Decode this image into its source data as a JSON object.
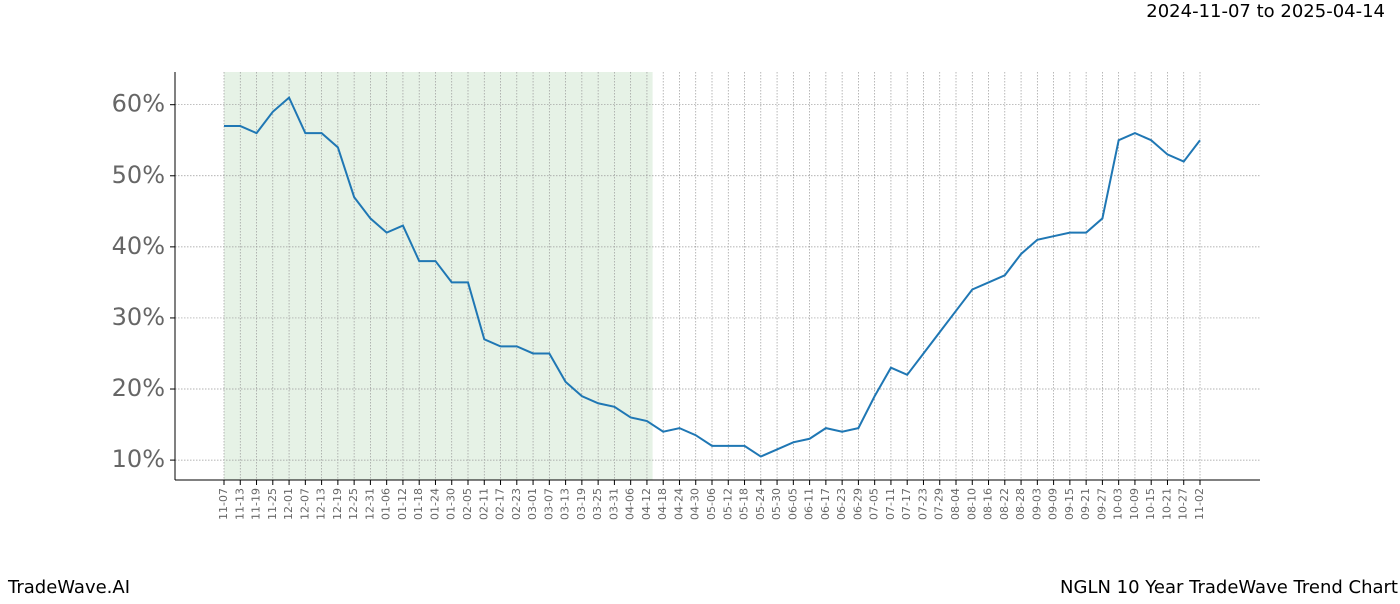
{
  "chart_data": {
    "type": "line",
    "title": "2024-11-07 to 2025-04-14",
    "brand": "TradeWave.AI",
    "subtitle": "NGLN 10 Year TradeWave Trend Chart",
    "categories": [
      "11-07",
      "11-13",
      "11-19",
      "11-25",
      "12-01",
      "12-07",
      "12-13",
      "12-19",
      "12-25",
      "12-31",
      "01-06",
      "01-12",
      "01-18",
      "01-24",
      "01-30",
      "02-05",
      "02-11",
      "02-17",
      "02-23",
      "03-01",
      "03-07",
      "03-13",
      "03-19",
      "03-25",
      "03-31",
      "04-06",
      "04-12",
      "04-18",
      "04-24",
      "04-30",
      "05-06",
      "05-12",
      "05-18",
      "05-24",
      "05-30",
      "06-05",
      "06-11",
      "06-17",
      "06-23",
      "06-29",
      "07-05",
      "07-11",
      "07-17",
      "07-23",
      "07-29",
      "08-04",
      "08-10",
      "08-16",
      "08-22",
      "08-28",
      "09-03",
      "09-09",
      "09-15",
      "09-21",
      "09-27",
      "10-03",
      "10-09",
      "10-15",
      "10-21",
      "10-27",
      "11-02"
    ],
    "series": [
      {
        "color": "#1f77b4",
        "values": [
          57,
          57,
          56,
          59,
          61,
          56,
          56,
          54,
          47,
          44,
          42,
          43,
          38,
          38,
          35,
          35,
          27,
          26,
          26,
          25,
          25,
          21,
          19,
          18,
          17.5,
          16,
          15.5,
          14,
          14.5,
          13.5,
          12,
          12,
          12,
          10.5,
          11.5,
          12.5,
          13,
          14.5,
          14,
          14.5,
          19,
          23,
          22,
          25,
          28,
          31,
          34,
          35,
          36,
          39,
          41,
          41.5,
          42,
          42,
          44,
          55,
          56,
          55,
          53,
          52,
          55
        ]
      }
    ],
    "shade_color": "#e6f2e6",
    "ylim": [
      7.2,
      64.6
    ],
    "yticks": [
      {
        "value": 10,
        "label": "10%"
      },
      {
        "value": 20,
        "label": "20%"
      },
      {
        "value": 30,
        "label": "30%"
      },
      {
        "value": 40,
        "label": "40%"
      },
      {
        "value": 50,
        "label": "50%"
      },
      {
        "value": 60,
        "label": "60%"
      }
    ],
    "grid": true
  }
}
